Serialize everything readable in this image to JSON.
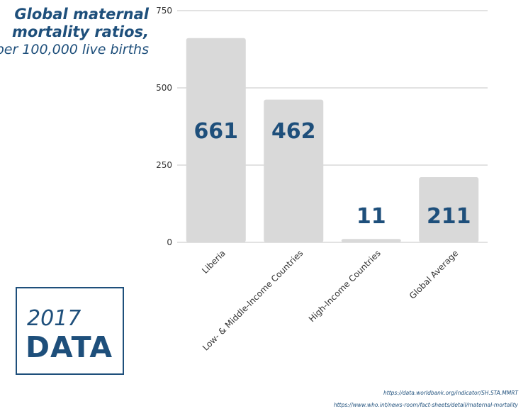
{
  "chart_data": {
    "type": "bar",
    "title": "Global maternal mortality ratios,",
    "subtitle": "per 100,000 live births",
    "categories": [
      "Liberia",
      "Low- & Middle-Income Countries",
      "High-Income Countries",
      "Global Average"
    ],
    "values": [
      661,
      462,
      11,
      211
    ],
    "value_labels": [
      "661",
      "462",
      "11",
      "211"
    ],
    "yticks": [
      0,
      250,
      500,
      750
    ],
    "ylim": [
      0,
      750
    ],
    "grid": true,
    "colors": {
      "bar": "#d9d9d9",
      "value_text": "#1e4f7b",
      "grid": "#d8d8d8",
      "tick_text": "#333333",
      "category_text": "#333333"
    }
  },
  "badge": {
    "year": "2017",
    "label": "DATA"
  },
  "sources": [
    "https://data.worldbank.org/indicator/SH.STA.MMRT",
    "https://www.who.int/news-room/fact-sheets/detail/maternal-mortality"
  ]
}
